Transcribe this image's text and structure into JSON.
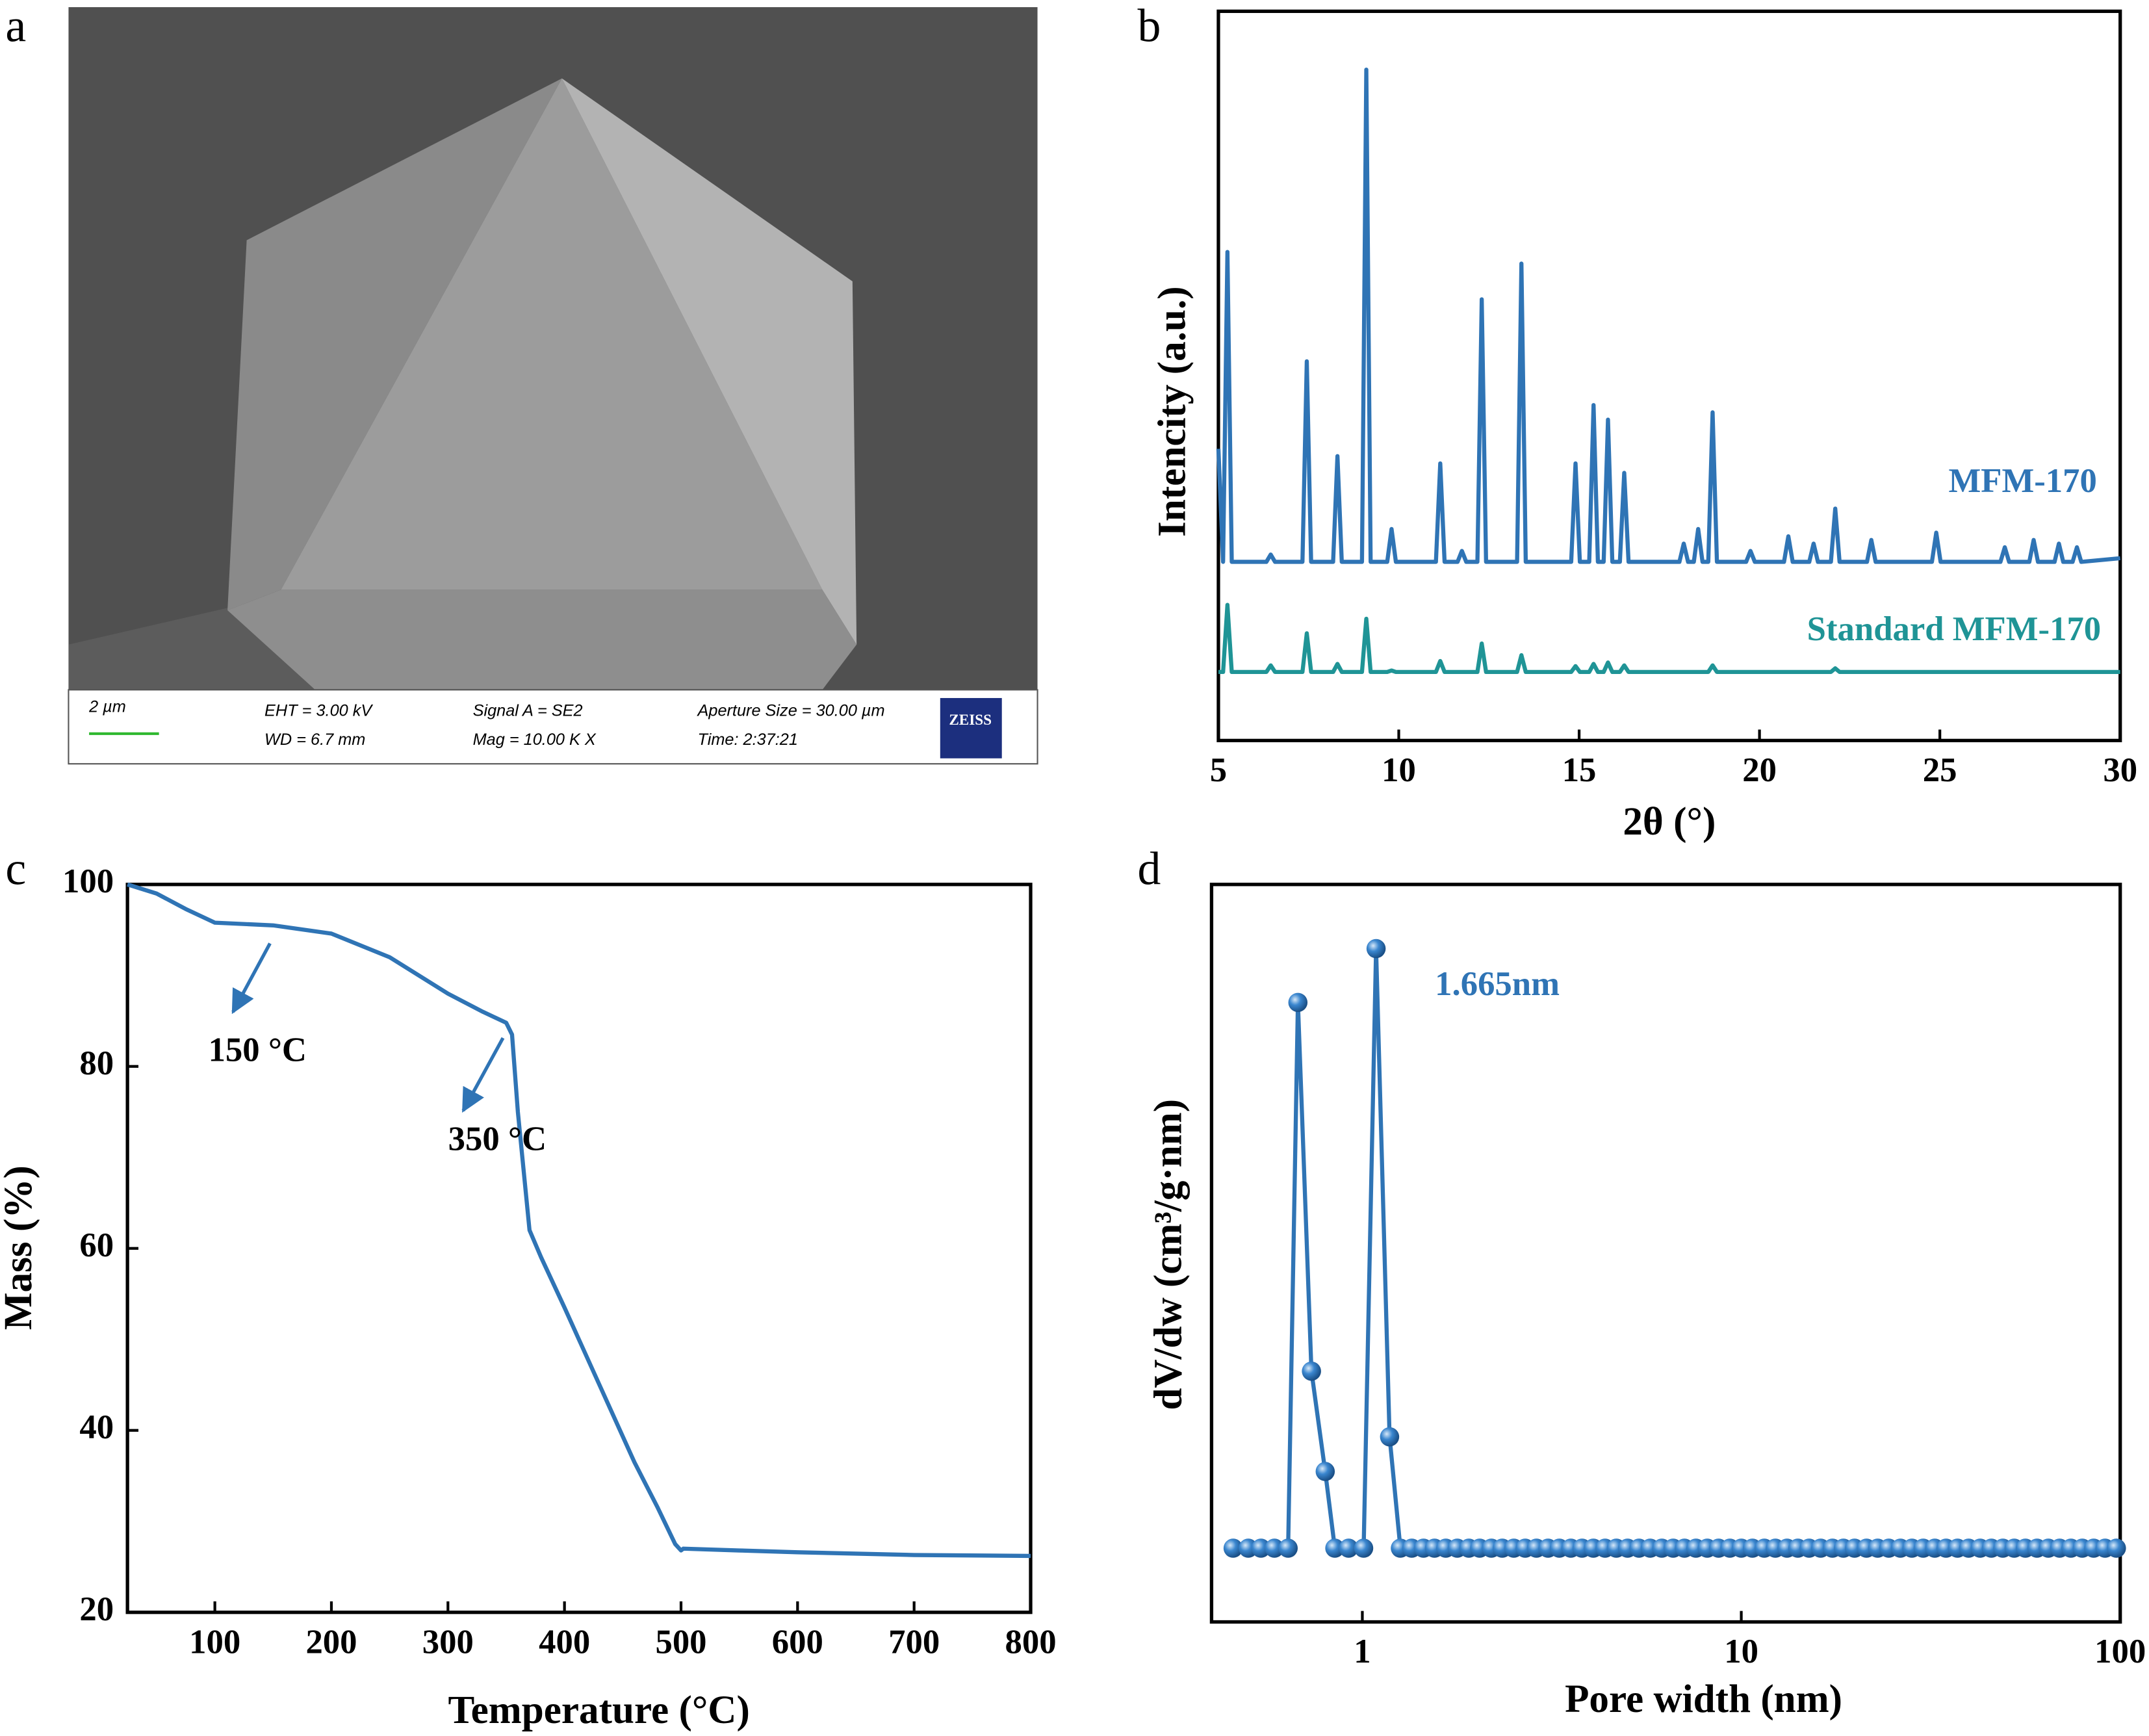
{
  "panel_a": {
    "panel_label": "a",
    "scale_bar": "2 µm",
    "info": [
      "EHT = 3.00 kV",
      "WD = 6.7 mm",
      "Signal A = SE2",
      "Mag = 10.00 K X",
      "Aperture Size = 30.00 µm",
      "Time: 2:37:21"
    ],
    "logo": "ZEISS"
  },
  "chart_data": [
    {
      "type": "line",
      "panel_label": "b",
      "x_label": "2θ (°)",
      "y_label": "Intencity (a.u.)",
      "xlim": [
        5,
        30
      ],
      "xticks": [
        5,
        10,
        15,
        20,
        25,
        30
      ],
      "ylim": [
        0,
        100
      ],
      "x": [
        5.0,
        5.13,
        5.25,
        5.37,
        6.33,
        6.45,
        6.57,
        7.33,
        7.45,
        7.57,
        8.18,
        8.3,
        8.42,
        8.98,
        9.1,
        9.22,
        9.68,
        9.8,
        9.92,
        11.03,
        11.15,
        11.27,
        11.63,
        11.75,
        11.87,
        12.18,
        12.3,
        12.42,
        13.28,
        13.4,
        13.52,
        14.78,
        14.9,
        15.02,
        15.28,
        15.4,
        15.52,
        15.68,
        15.8,
        15.92,
        16.13,
        16.25,
        16.37,
        17.78,
        17.9,
        18.02,
        18.18,
        18.3,
        18.42,
        18.58,
        18.7,
        18.82,
        19.63,
        19.75,
        19.87,
        20.68,
        20.8,
        20.92,
        21.38,
        21.5,
        21.62,
        21.98,
        22.1,
        22.22,
        22.98,
        23.1,
        23.22,
        24.78,
        24.9,
        25.02,
        26.68,
        26.8,
        26.92,
        27.48,
        27.6,
        27.72,
        28.18,
        28.3,
        28.42,
        28.68,
        28.8,
        28.92,
        30.0
      ],
      "series": [
        {
          "name": "MFM-170",
          "color": "#2f74b5",
          "values": [
            40,
            24.5,
            67,
            24.5,
            24.5,
            25.5,
            24.5,
            24.5,
            52,
            24.5,
            24.5,
            39,
            24.5,
            24.5,
            92,
            24.5,
            24.5,
            29,
            24.5,
            24.5,
            38,
            24.5,
            24.5,
            26,
            24.5,
            24.5,
            60.5,
            24.5,
            24.5,
            65.4,
            24.5,
            24.5,
            38,
            24.5,
            24.5,
            46,
            24.5,
            24.5,
            44,
            24.5,
            24.5,
            36.7,
            24.5,
            24.5,
            27,
            24.5,
            24.5,
            29,
            24.5,
            24.5,
            45,
            24.5,
            24.5,
            26,
            24.5,
            24.5,
            28,
            24.5,
            24.5,
            27,
            24.5,
            24.5,
            31.8,
            24.5,
            24.5,
            27.5,
            24.5,
            24.5,
            28.5,
            24.5,
            24.5,
            26.5,
            24.5,
            24.5,
            27.5,
            24.5,
            24.5,
            27,
            24.5,
            24.5,
            26.5,
            24.5,
            25
          ]
        },
        {
          "name": "Standard MFM-170",
          "color": "#1f9496",
          "values": [
            9.4,
            9.4,
            18.6,
            9.4,
            9.4,
            10.3,
            9.4,
            9.4,
            14.7,
            9.4,
            9.4,
            10.5,
            9.4,
            9.4,
            16.7,
            9.4,
            9.4,
            9.6,
            9.4,
            9.4,
            10.9,
            9.4,
            9.4,
            9.4,
            9.4,
            9.4,
            13.3,
            9.4,
            9.4,
            11.7,
            9.4,
            9.4,
            10.2,
            9.4,
            9.4,
            10.5,
            9.4,
            9.4,
            10.7,
            9.4,
            9.4,
            10.3,
            9.4,
            9.4,
            9.4,
            9.4,
            9.4,
            9.4,
            9.4,
            9.4,
            10.3,
            9.4,
            9.4,
            9.4,
            9.4,
            9.4,
            9.4,
            9.4,
            9.4,
            9.4,
            9.4,
            9.4,
            9.9,
            9.4,
            9.4,
            9.4,
            9.4,
            9.4,
            9.4,
            9.4,
            9.4,
            9.4,
            9.4,
            9.4,
            9.4,
            9.4,
            9.4,
            9.4,
            9.4,
            9.4,
            9.4,
            9.4,
            9.4
          ]
        }
      ]
    },
    {
      "type": "line",
      "panel_label": "c",
      "x_label": "Temperature (°C)",
      "y_label": "Mass (%)",
      "xlim": [
        25,
        800
      ],
      "xticks": [
        100,
        200,
        300,
        400,
        500,
        600,
        700,
        800
      ],
      "ylim": [
        20,
        100
      ],
      "yticks": [
        20,
        40,
        60,
        80,
        100
      ],
      "x": [
        25,
        50,
        75,
        100,
        150,
        200,
        250,
        300,
        330,
        350,
        355,
        360,
        370,
        380,
        400,
        430,
        460,
        480,
        495,
        500,
        502,
        550,
        600,
        700,
        800
      ],
      "series": [
        {
          "color": "#2f74b5",
          "values": [
            100,
            99,
            97.3,
            95.8,
            95.5,
            94.6,
            92,
            88,
            86,
            84.8,
            83.5,
            75,
            62,
            59,
            53.5,
            45,
            36.5,
            31.5,
            27.5,
            26.8,
            27,
            26.8,
            26.6,
            26.3,
            26.2
          ]
        }
      ],
      "annotations": [
        "150 °C",
        "350 °C"
      ]
    },
    {
      "type": "line",
      "panel_label": "d",
      "x_label": "Pore width (nm)",
      "y_label": "dV/dw (cm³/g·nm)",
      "log_x": true,
      "markers": true,
      "xlim": [
        0.4,
        100
      ],
      "xticks": [
        1,
        10,
        100
      ],
      "ylim": [
        0,
        100
      ],
      "x": [
        0.456,
        0.5,
        0.54,
        0.586,
        0.637,
        0.676,
        0.734,
        0.798,
        0.846,
        0.92,
        1.008,
        1.087,
        1.18,
        1.26,
        1.35,
        1.45,
        1.55,
        1.66,
        1.78,
        1.91,
        2.04,
        2.19,
        2.34,
        2.51,
        2.69,
        2.88,
        3.09,
        3.31,
        3.55,
        3.8,
        4.07,
        4.37,
        4.68,
        5.01,
        5.37,
        5.75,
        6.17,
        6.61,
        7.08,
        7.59,
        8.13,
        8.71,
        9.33,
        10.0,
        10.7,
        11.5,
        12.3,
        13.2,
        14.1,
        15.1,
        16.2,
        17.4,
        18.6,
        19.9,
        21.4,
        22.9,
        24.5,
        26.3,
        28.2,
        30.2,
        32.4,
        34.7,
        37.2,
        39.8,
        42.7,
        45.7,
        49.0,
        52.5,
        56.2,
        60.3,
        64.6,
        69.2,
        74.1,
        79.4,
        85.1,
        91.2,
        97.7
      ],
      "series": [
        {
          "color": "#2f74b5",
          "values": [
            10,
            10,
            10,
            10,
            10,
            84,
            34,
            20.4,
            10,
            10,
            10,
            91.3,
            25.1,
            10,
            10,
            10,
            10,
            10,
            10,
            10,
            10,
            10,
            10,
            10,
            10,
            10,
            10,
            10,
            10,
            10,
            10,
            10,
            10,
            10,
            10,
            10,
            10,
            10,
            10,
            10,
            10,
            10,
            10,
            10,
            10,
            10,
            10,
            10,
            10,
            10,
            10,
            10,
            10,
            10,
            10,
            10,
            10,
            10,
            10,
            10,
            10,
            10,
            10,
            10,
            10,
            10,
            10,
            10,
            10,
            10,
            10,
            10,
            10,
            10,
            10,
            10,
            10
          ]
        }
      ],
      "annotations": [
        "1.665nm"
      ]
    }
  ]
}
